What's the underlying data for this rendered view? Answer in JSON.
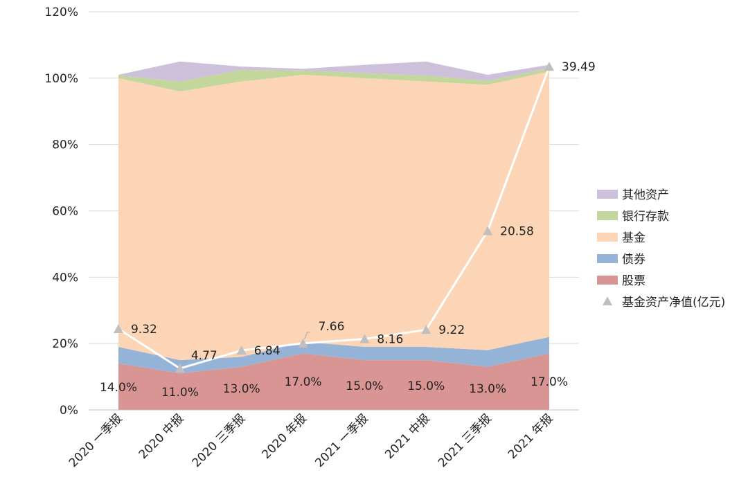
{
  "chart_data": {
    "type": "area",
    "stacked": true,
    "categories": [
      "2020 一季报",
      "2020 中报",
      "2020 三季报",
      "2020 年报",
      "2021 一季报",
      "2021 中报",
      "2021 三季报",
      "2021 年报"
    ],
    "series": [
      {
        "name": "股票",
        "color": "#d99594",
        "values": [
          14.0,
          11.0,
          13.0,
          17.0,
          15.0,
          15.0,
          13.0,
          17.0
        ]
      },
      {
        "name": "债券",
        "color": "#95b3d7",
        "values": [
          5.0,
          4.0,
          3.0,
          3.5,
          4.0,
          4.0,
          5.0,
          5.0
        ]
      },
      {
        "name": "基金",
        "color": "#fbd5b5",
        "values": [
          81.0,
          81.0,
          83.0,
          80.5,
          81.0,
          80.0,
          80.0,
          80.0
        ]
      },
      {
        "name": "银行存款",
        "color": "#c3d69b",
        "values": [
          0.8,
          3.0,
          3.5,
          1.3,
          1.5,
          1.8,
          1.2,
          1.0
        ]
      },
      {
        "name": "其他资产",
        "color": "#ccc0da",
        "values": [
          0.2,
          6.0,
          1.0,
          0.5,
          2.5,
          4.2,
          1.8,
          1.0
        ]
      }
    ],
    "line_series": {
      "name": "基金资产净值(亿元)",
      "color": "#ffffff",
      "marker_color": "#bfbfbf",
      "values": [
        9.32,
        4.77,
        6.84,
        7.66,
        8.16,
        9.22,
        20.58,
        39.49
      ],
      "labels": [
        "9.32",
        "4.77",
        "6.84",
        "7.66",
        "8.16",
        "9.22",
        "20.58",
        "39.49"
      ]
    },
    "stock_labels": [
      "14.0%",
      "11.0%",
      "13.0%",
      "17.0%",
      "15.0%",
      "15.0%",
      "13.0%",
      "17.0%"
    ],
    "y_ticks": [
      "0%",
      "20%",
      "40%",
      "60%",
      "80%",
      "100%",
      "120%"
    ],
    "ylim": [
      0,
      120
    ],
    "secondary_ylim": [
      0,
      45.8
    ],
    "legend_position": "right",
    "legend": [
      "其他资产",
      "银行存款",
      "基金",
      "债券",
      "股票",
      "基金资产净值(亿元)"
    ],
    "grid": true
  }
}
